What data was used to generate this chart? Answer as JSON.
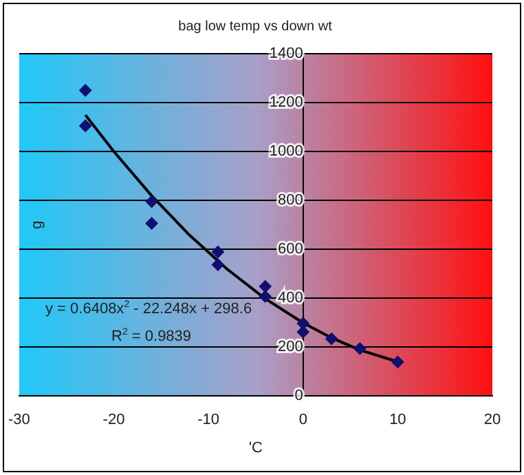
{
  "chart_data": {
    "type": "scatter",
    "title": "bag low temp vs down wt",
    "xlabel": "'C",
    "ylabel": "g",
    "xlim": [
      -30,
      20
    ],
    "xticks": [
      -30,
      -20,
      -10,
      0,
      10,
      20
    ],
    "ylim": [
      0,
      1400
    ],
    "yticks": [
      0,
      200,
      400,
      600,
      800,
      1000,
      1200,
      1400
    ],
    "grid": "y",
    "legend": false,
    "marker": "diamond",
    "series": [
      {
        "color": "#101070",
        "x": [
          -23,
          -23,
          -16,
          -16,
          -9,
          -9,
          -4,
          -4,
          0,
          0,
          3,
          6,
          10
        ],
        "values": [
          1250,
          1105,
          795,
          706,
          589,
          537,
          448,
          407,
          297,
          262,
          234,
          194,
          139
        ]
      },
      {
        "type": "line",
        "marker": "none",
        "color": "#000000",
        "x": [
          -23,
          -20,
          -16,
          -12,
          -8,
          -4,
          0,
          3,
          6,
          10
        ],
        "values": [
          1149,
          1000,
          819,
          658,
          518,
          398,
          299,
          238,
          188,
          140
        ]
      }
    ],
    "annotations": [
      "y = 0.6408x$^{2}$ - 22.248x + 298.6",
      "R$^{2}$ = 0.9839"
    ]
  }
}
